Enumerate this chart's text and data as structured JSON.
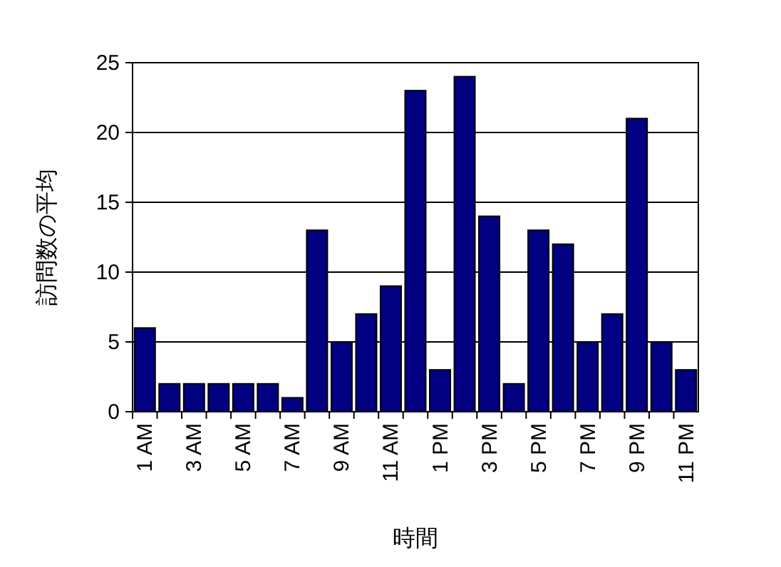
{
  "chart_data": {
    "type": "bar",
    "xlabel": "時間",
    "ylabel": "訪問数の平均",
    "categories": [
      "1 AM",
      null,
      "3 AM",
      null,
      "5 AM",
      null,
      "7 AM",
      null,
      "9 AM",
      null,
      "11 AM",
      null,
      "1 PM",
      null,
      "3 PM",
      null,
      "5 PM",
      null,
      "7 PM",
      null,
      "9 PM",
      null,
      "11 PM"
    ],
    "values": [
      6,
      2,
      2,
      2,
      2,
      2,
      1,
      13,
      5,
      7,
      9,
      23,
      3,
      24,
      14,
      2,
      13,
      12,
      5,
      7,
      21,
      5,
      3
    ],
    "color": "#000080",
    "ylim": [
      0,
      25
    ],
    "yticks": [
      0,
      5,
      10,
      15,
      20,
      25
    ],
    "grid": "y"
  }
}
